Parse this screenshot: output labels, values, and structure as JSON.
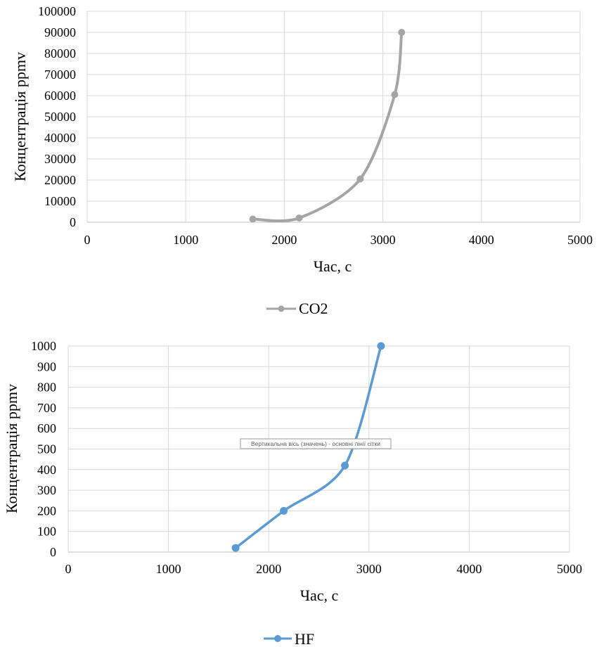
{
  "chart_data": [
    {
      "type": "scatter",
      "title": "",
      "xlabel": "Час, с",
      "ylabel": "Концентрація ppmv",
      "xlim": [
        0,
        5000
      ],
      "ylim": [
        0,
        100000
      ],
      "xticks": [
        "0",
        "1000",
        "2000",
        "3000",
        "4000",
        "5000"
      ],
      "yticks": [
        "0",
        "10000",
        "20000",
        "30000",
        "40000",
        "50000",
        "60000",
        "70000",
        "80000",
        "90000",
        "100000"
      ],
      "grid": true,
      "smooth": true,
      "legend": "bottom",
      "series": [
        {
          "name": "CO2",
          "color": "#a5a5a5",
          "x": [
            1680,
            2150,
            2770,
            3120,
            3190
          ],
          "y": [
            1500,
            2000,
            20500,
            60500,
            90000
          ]
        }
      ]
    },
    {
      "type": "scatter",
      "title": "",
      "xlabel": "Час, с",
      "ylabel": "Концентрація ppmv",
      "xlim": [
        0,
        5000
      ],
      "ylim": [
        0,
        1000
      ],
      "xticks": [
        "0",
        "1000",
        "2000",
        "3000",
        "4000",
        "5000"
      ],
      "yticks": [
        "0",
        "100",
        "200",
        "300",
        "400",
        "500",
        "600",
        "700",
        "800",
        "900",
        "1000"
      ],
      "grid": true,
      "smooth": true,
      "legend": "bottom",
      "series": [
        {
          "name": "HF",
          "color": "#5b9bd5",
          "x": [
            1670,
            2150,
            2760,
            3120
          ],
          "y": [
            20,
            200,
            420,
            1000
          ]
        }
      ],
      "tooltip": "Вертикальна вісь (значень) - основні лінії сітки"
    }
  ]
}
